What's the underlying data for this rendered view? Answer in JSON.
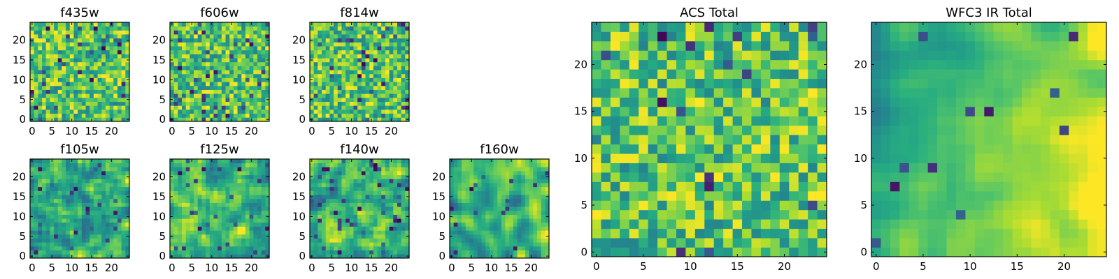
{
  "figure": {
    "description_colormap": "viridis",
    "background": "#ffffff",
    "axis_color": "#000000"
  },
  "chart_data": [
    {
      "id": "f435w",
      "type": "heatmap",
      "title": "f435w",
      "grid_size": 25,
      "xlim": [
        -0.5,
        24.5
      ],
      "ylim": [
        -0.5,
        24.5
      ],
      "xticks": [
        0,
        5,
        10,
        15,
        20
      ],
      "yticks": [
        0,
        5,
        10,
        15,
        20
      ],
      "xtick_labels": [
        "0",
        "5",
        "10",
        "15",
        "20"
      ],
      "ytick_labels": [
        "0",
        "5",
        "10",
        "15",
        "20"
      ],
      "value_range": [
        0,
        1
      ],
      "texture": "noise",
      "dark_cells": 0.05,
      "seed": 11,
      "smooth": 0
    },
    {
      "id": "f606w",
      "type": "heatmap",
      "title": "f606w",
      "grid_size": 25,
      "xlim": [
        -0.5,
        24.5
      ],
      "ylim": [
        -0.5,
        24.5
      ],
      "xticks": [
        0,
        5,
        10,
        15,
        20
      ],
      "yticks": [
        0,
        5,
        10,
        15,
        20
      ],
      "xtick_labels": [
        "0",
        "5",
        "10",
        "15",
        "20"
      ],
      "ytick_labels": [
        "0",
        "5",
        "10",
        "15",
        "20"
      ],
      "value_range": [
        0,
        1
      ],
      "texture": "noise",
      "dark_cells": 0.05,
      "seed": 23,
      "smooth": 0
    },
    {
      "id": "f814w",
      "type": "heatmap",
      "title": "f814w",
      "grid_size": 25,
      "xlim": [
        -0.5,
        24.5
      ],
      "ylim": [
        -0.5,
        24.5
      ],
      "xticks": [
        0,
        5,
        10,
        15,
        20
      ],
      "yticks": [
        0,
        5,
        10,
        15,
        20
      ],
      "xtick_labels": [
        "0",
        "5",
        "10",
        "15",
        "20"
      ],
      "ytick_labels": [
        "0",
        "5",
        "10",
        "15",
        "20"
      ],
      "value_range": [
        0,
        1
      ],
      "texture": "noise",
      "dark_cells": 0.05,
      "seed": 37,
      "smooth": 0
    },
    {
      "id": "f105w",
      "type": "heatmap",
      "title": "f105w",
      "grid_size": 25,
      "xlim": [
        -0.5,
        24.5
      ],
      "ylim": [
        -0.5,
        24.5
      ],
      "xticks": [
        0,
        5,
        10,
        15,
        20
      ],
      "yticks": [
        0,
        5,
        10,
        15,
        20
      ],
      "xtick_labels": [
        "0",
        "5",
        "10",
        "15",
        "20"
      ],
      "ytick_labels": [
        "0",
        "5",
        "10",
        "15",
        "20"
      ],
      "value_range": [
        0,
        1
      ],
      "texture": "smooth",
      "dark_cells": 0.04,
      "seed": 41,
      "smooth": 1
    },
    {
      "id": "f125w",
      "type": "heatmap",
      "title": "f125w",
      "grid_size": 25,
      "xlim": [
        -0.5,
        24.5
      ],
      "ylim": [
        -0.5,
        24.5
      ],
      "xticks": [
        0,
        5,
        10,
        15,
        20
      ],
      "yticks": [
        0,
        5,
        10,
        15,
        20
      ],
      "xtick_labels": [
        "0",
        "5",
        "10",
        "15",
        "20"
      ],
      "ytick_labels": [
        "0",
        "5",
        "10",
        "15",
        "20"
      ],
      "value_range": [
        0,
        1
      ],
      "texture": "smooth",
      "dark_cells": 0.05,
      "seed": 53,
      "smooth": 1
    },
    {
      "id": "f140w",
      "type": "heatmap",
      "title": "f140w",
      "grid_size": 25,
      "xlim": [
        -0.5,
        24.5
      ],
      "ylim": [
        -0.5,
        24.5
      ],
      "xticks": [
        0,
        5,
        10,
        15,
        20
      ],
      "yticks": [
        0,
        5,
        10,
        15,
        20
      ],
      "xtick_labels": [
        "0",
        "5",
        "10",
        "15",
        "20"
      ],
      "ytick_labels": [
        "0",
        "5",
        "10",
        "15",
        "20"
      ],
      "value_range": [
        0,
        1
      ],
      "texture": "smooth",
      "dark_cells": 0.05,
      "seed": 67,
      "smooth": 1
    },
    {
      "id": "f160w",
      "type": "heatmap",
      "title": "f160w",
      "grid_size": 25,
      "xlim": [
        -0.5,
        24.5
      ],
      "ylim": [
        -0.5,
        24.5
      ],
      "xticks": [
        0,
        5,
        10,
        15,
        20
      ],
      "yticks": [
        0,
        5,
        10,
        15,
        20
      ],
      "xtick_labels": [
        "0",
        "5",
        "10",
        "15",
        "20"
      ],
      "ytick_labels": [
        "0",
        "5",
        "10",
        "15",
        "20"
      ],
      "value_range": [
        0,
        1
      ],
      "texture": "smooth",
      "dark_cells": 0.03,
      "seed": 79,
      "smooth": 2
    },
    {
      "id": "acs-total",
      "type": "heatmap",
      "title": "ACS Total",
      "grid_size": 25,
      "xlim": [
        -0.5,
        24.5
      ],
      "ylim": [
        -0.5,
        24.5
      ],
      "xticks": [
        0,
        5,
        10,
        15,
        20
      ],
      "yticks": [
        0,
        5,
        10,
        15,
        20
      ],
      "xtick_labels": [
        "0",
        "5",
        "10",
        "15",
        "20"
      ],
      "ytick_labels": [
        "0",
        "5",
        "10",
        "15",
        "20"
      ],
      "value_range": [
        0,
        1
      ],
      "texture": "noise",
      "dark_cells": 0.03,
      "seed": 97,
      "smooth": 0
    },
    {
      "id": "wfc3-ir-total",
      "type": "heatmap",
      "title": "WFC3 IR Total",
      "grid_size": 25,
      "xlim": [
        -0.5,
        24.5
      ],
      "ylim": [
        -0.5,
        24.5
      ],
      "xticks": [
        0,
        5,
        10,
        15,
        20
      ],
      "yticks": [
        0,
        5,
        10,
        15,
        20
      ],
      "xtick_labels": [
        "0",
        "5",
        "10",
        "15",
        "20"
      ],
      "ytick_labels": [
        "0",
        "5",
        "10",
        "15",
        "20"
      ],
      "value_range": [
        0,
        1
      ],
      "texture": "gradient",
      "dark_cells": 0.02,
      "seed": 113,
      "smooth": 2
    }
  ]
}
